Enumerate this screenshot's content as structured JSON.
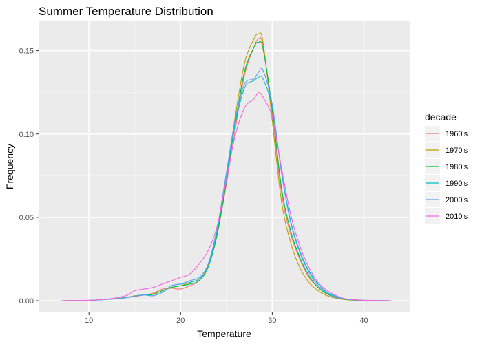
{
  "chart_data": {
    "type": "line",
    "title": "Summer Temperature  Distribution",
    "xlabel": "Temperature",
    "ylabel": "Frequency",
    "xlim": [
      4.5,
      45.0
    ],
    "ylim": [
      -0.007,
      0.168
    ],
    "xticks": [
      10,
      20,
      30,
      40
    ],
    "xtick_labels": [
      "10",
      "20",
      "30",
      "40"
    ],
    "yticks": [
      0.0,
      0.05,
      0.1,
      0.15
    ],
    "ytick_labels": [
      "0.00",
      "0.05",
      "0.10",
      "0.15"
    ],
    "grid": true,
    "legend": {
      "title": "decade",
      "placement": "right"
    },
    "x": [
      7,
      10,
      12,
      14,
      15,
      16,
      17,
      18,
      19,
      20,
      21,
      22,
      23,
      24,
      25,
      26,
      27,
      28,
      28.5,
      29,
      30,
      31,
      32,
      33,
      34,
      35,
      36,
      37,
      38,
      40,
      43
    ],
    "series": [
      {
        "name": "1960's",
        "color": "#F8766D",
        "values": [
          0,
          0.0002,
          0.0008,
          0.002,
          0.0025,
          0.0035,
          0.0045,
          0.007,
          0.0075,
          0.007,
          0.009,
          0.012,
          0.02,
          0.04,
          0.07,
          0.104,
          0.136,
          0.152,
          0.157,
          0.153,
          0.112,
          0.065,
          0.04,
          0.025,
          0.014,
          0.008,
          0.004,
          0.002,
          0.0008,
          0.0002,
          0
        ]
      },
      {
        "name": "1970's",
        "color": "#B79F00",
        "values": [
          0,
          0.0002,
          0.0008,
          0.002,
          0.003,
          0.0035,
          0.004,
          0.006,
          0.008,
          0.009,
          0.011,
          0.013,
          0.021,
          0.042,
          0.075,
          0.112,
          0.143,
          0.157,
          0.16,
          0.155,
          0.108,
          0.06,
          0.035,
          0.02,
          0.011,
          0.006,
          0.003,
          0.0015,
          0.0006,
          0.0001,
          0
        ]
      },
      {
        "name": "1980's",
        "color": "#00BA38",
        "values": [
          0,
          0.0002,
          0.0008,
          0.0018,
          0.0028,
          0.0035,
          0.0038,
          0.006,
          0.008,
          0.009,
          0.01,
          0.012,
          0.02,
          0.04,
          0.072,
          0.108,
          0.138,
          0.152,
          0.155,
          0.151,
          0.115,
          0.068,
          0.042,
          0.026,
          0.015,
          0.008,
          0.004,
          0.002,
          0.0008,
          0.0002,
          0
        ]
      },
      {
        "name": "1990's",
        "color": "#00BFC4",
        "values": [
          0,
          0.0002,
          0.0008,
          0.0018,
          0.0028,
          0.0035,
          0.003,
          0.005,
          0.009,
          0.01,
          0.011,
          0.013,
          0.02,
          0.042,
          0.075,
          0.107,
          0.128,
          0.132,
          0.134,
          0.133,
          0.116,
          0.078,
          0.048,
          0.03,
          0.018,
          0.01,
          0.005,
          0.0025,
          0.001,
          0.0003,
          0
        ]
      },
      {
        "name": "2000's",
        "color": "#619CFF",
        "values": [
          0,
          0.0002,
          0.0008,
          0.0018,
          0.0028,
          0.0035,
          0.003,
          0.005,
          0.009,
          0.01,
          0.012,
          0.014,
          0.022,
          0.044,
          0.077,
          0.11,
          0.13,
          0.133,
          0.137,
          0.138,
          0.118,
          0.077,
          0.047,
          0.029,
          0.017,
          0.009,
          0.0045,
          0.002,
          0.0009,
          0.0002,
          0
        ]
      },
      {
        "name": "2010's",
        "color": "#F564E3",
        "values": [
          0,
          0.0003,
          0.001,
          0.003,
          0.006,
          0.007,
          0.008,
          0.01,
          0.012,
          0.014,
          0.016,
          0.022,
          0.03,
          0.045,
          0.073,
          0.1,
          0.116,
          0.121,
          0.125,
          0.122,
          0.11,
          0.08,
          0.052,
          0.033,
          0.02,
          0.011,
          0.006,
          0.003,
          0.0012,
          0.0003,
          0
        ]
      }
    ]
  }
}
